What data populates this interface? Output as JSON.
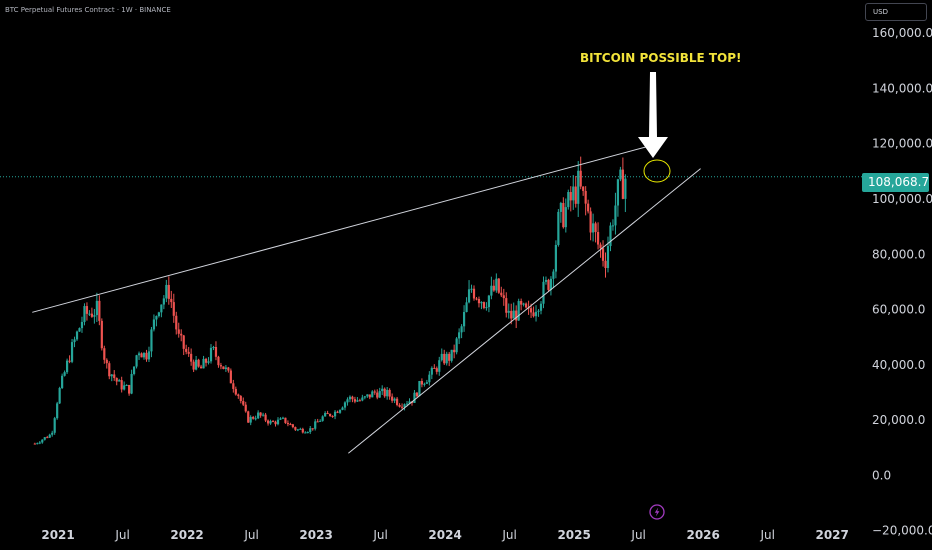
{
  "header": {
    "title": "BTC Perpetual Futures Contract · 1W · BINANCE"
  },
  "currency_button": {
    "label": "USD"
  },
  "last_price": {
    "label": "108,068.7",
    "color": "#26a69a"
  },
  "annotation": {
    "text": "BITCOIN POSSIBLE TOP!",
    "color": "#f2e33a"
  },
  "colors": {
    "up": "#26a69a",
    "down": "#ef5350",
    "background": "#000000",
    "trendline": "#d1d4dc"
  },
  "footer_icon": {
    "name": "lightning-icon",
    "color": "#a33bc1"
  },
  "chart_data": {
    "type": "candlestick",
    "title": "",
    "y_ticks": [
      "160,000.0",
      "140,000.0",
      "120,000.0",
      "100,000.0",
      "80,000.0",
      "60,000.0",
      "40,000.0",
      "20,000.0",
      "0.0",
      "−20,000.0"
    ],
    "x_ticks": [
      {
        "label": "2021",
        "bold": true
      },
      {
        "label": "Jul",
        "bold": false
      },
      {
        "label": "2022",
        "bold": true
      },
      {
        "label": "Jul",
        "bold": false
      },
      {
        "label": "2023",
        "bold": true
      },
      {
        "label": "Jul",
        "bold": false
      },
      {
        "label": "2024",
        "bold": true
      },
      {
        "label": "Jul",
        "bold": false
      },
      {
        "label": "2025",
        "bold": true
      },
      {
        "label": "Jul",
        "bold": false
      },
      {
        "label": "2026",
        "bold": true
      },
      {
        "label": "Jul",
        "bold": false
      },
      {
        "label": "2027",
        "bold": true
      }
    ],
    "ylim": [
      -27000,
      172000
    ],
    "xlim": [
      2020.55,
      2027.2
    ],
    "price_path": [
      [
        2020.82,
        11500
      ],
      [
        2020.95,
        15000
      ],
      [
        2021.0,
        29000
      ],
      [
        2021.1,
        45000
      ],
      [
        2021.2,
        58000
      ],
      [
        2021.3,
        60000
      ],
      [
        2021.37,
        40000
      ],
      [
        2021.47,
        33000
      ],
      [
        2021.55,
        31000
      ],
      [
        2021.62,
        46000
      ],
      [
        2021.68,
        43000
      ],
      [
        2021.78,
        62000
      ],
      [
        2021.86,
        67000
      ],
      [
        2021.93,
        50000
      ],
      [
        2022.02,
        42000
      ],
      [
        2022.1,
        38000
      ],
      [
        2022.2,
        45000
      ],
      [
        2022.3,
        38000
      ],
      [
        2022.4,
        29000
      ],
      [
        2022.47,
        20000
      ],
      [
        2022.55,
        22000
      ],
      [
        2022.65,
        19000
      ],
      [
        2022.75,
        20000
      ],
      [
        2022.85,
        16500
      ],
      [
        2022.95,
        16500
      ],
      [
        2023.05,
        21000
      ],
      [
        2023.15,
        23000
      ],
      [
        2023.25,
        28000
      ],
      [
        2023.35,
        27000
      ],
      [
        2023.45,
        30000
      ],
      [
        2023.55,
        29500
      ],
      [
        2023.65,
        26000
      ],
      [
        2023.75,
        27500
      ],
      [
        2023.82,
        34000
      ],
      [
        2023.9,
        37000
      ],
      [
        2023.98,
        42000
      ],
      [
        2024.05,
        43000
      ],
      [
        2024.12,
        52000
      ],
      [
        2024.2,
        68000
      ],
      [
        2024.3,
        63000
      ],
      [
        2024.4,
        68000
      ],
      [
        2024.5,
        57000
      ],
      [
        2024.58,
        60000
      ],
      [
        2024.65,
        58000
      ],
      [
        2024.72,
        63000
      ],
      [
        2024.82,
        72000
      ],
      [
        2024.88,
        92000
      ],
      [
        2024.96,
        98000
      ],
      [
        2025.03,
        105000
      ],
      [
        2025.1,
        96000
      ],
      [
        2025.18,
        84000
      ],
      [
        2025.24,
        78000
      ],
      [
        2025.3,
        94000
      ],
      [
        2025.35,
        104000
      ],
      [
        2025.4,
        108000
      ]
    ],
    "trendlines": [
      {
        "from": [
          2020.8,
          59000
        ],
        "to": [
          2025.65,
          120000
        ]
      },
      {
        "from": [
          2023.25,
          8000
        ],
        "to": [
          2025.98,
          111000
        ]
      }
    ]
  }
}
